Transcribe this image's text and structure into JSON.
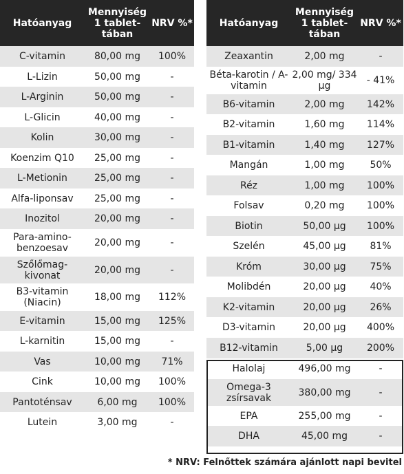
{
  "headers": {
    "ingredient": "Hatóanyag",
    "amount": "Mennyiség 1 tablet- tában",
    "nrv": "NRV %*"
  },
  "left_rows": [
    [
      "C-vitamin",
      "80,00 mg",
      "100%"
    ],
    [
      "L-Lizin",
      "50,00 mg",
      "-"
    ],
    [
      "L-Arginin",
      "50,00 mg",
      "-"
    ],
    [
      "L-Glicin",
      "40,00 mg",
      "-"
    ],
    [
      "Kolin",
      "30,00 mg",
      "-"
    ],
    [
      "Koenzim Q10",
      "25,00 mg",
      "-"
    ],
    [
      "L-Metionin",
      "25,00 mg",
      "-"
    ],
    [
      "Alfa-liponsav",
      "25,00 mg",
      "-"
    ],
    [
      "Inozitol",
      "20,00 mg",
      "-"
    ],
    [
      "Para-amino- benzoesav",
      "20,00 mg",
      "-"
    ],
    [
      "Szőlőmag- kivonat",
      "20,00 mg",
      "-"
    ],
    [
      "B3-vitamin (Niacin)",
      "18,00 mg",
      "112%"
    ],
    [
      "E-vitamin",
      "15,00 mg",
      "125%"
    ],
    [
      "L-karnitin",
      "15,00 mg",
      "-"
    ],
    [
      "Vas",
      "10,00 mg",
      "71%"
    ],
    [
      "Cink",
      "10,00 mg",
      "100%"
    ],
    [
      "Pantoténsav",
      "6,00 mg",
      "100%"
    ],
    [
      "Lutein",
      "3,00 mg",
      "-"
    ]
  ],
  "right_rows": [
    [
      "Zeaxantin",
      "2,00 mg",
      "-"
    ],
    [
      "Béta-karotin / A-vitamin",
      "2,00 mg/ 334 µg",
      "- 41%"
    ],
    [
      "B6-vitamin",
      "2,00 mg",
      "142%"
    ],
    [
      "B2-vitamin",
      "1,60 mg",
      "114%"
    ],
    [
      "B1-vitamin",
      "1,40 mg",
      "127%"
    ],
    [
      "Mangán",
      "1,00 mg",
      "50%"
    ],
    [
      "Réz",
      "1,00 mg",
      "100%"
    ],
    [
      "Folsav",
      "0,20 mg",
      "100%"
    ],
    [
      "Biotin",
      "50,00 µg",
      "100%"
    ],
    [
      "Szelén",
      "45,00 µg",
      "81%"
    ],
    [
      "Króm",
      "30,00 µg",
      "75%"
    ],
    [
      "Molibdén",
      "20,00 µg",
      "40%"
    ],
    [
      "K2-vitamin",
      "20,00 µg",
      "26%"
    ],
    [
      "D3-vitamin",
      "20,00 µg",
      "400%"
    ],
    [
      "B12-vitamin",
      "5,00 µg",
      "200%"
    ],
    [
      "Halolaj",
      "496,00 mg",
      "-"
    ],
    [
      "Omega-3 zsírsavak",
      "380,00 mg",
      "-"
    ],
    [
      "EPA",
      "255,00 mg",
      "-"
    ],
    [
      "DHA",
      "45,00 mg",
      "-"
    ]
  ],
  "footnote": "* NRV: Felnőttek számára ajánlott napi bevitel"
}
